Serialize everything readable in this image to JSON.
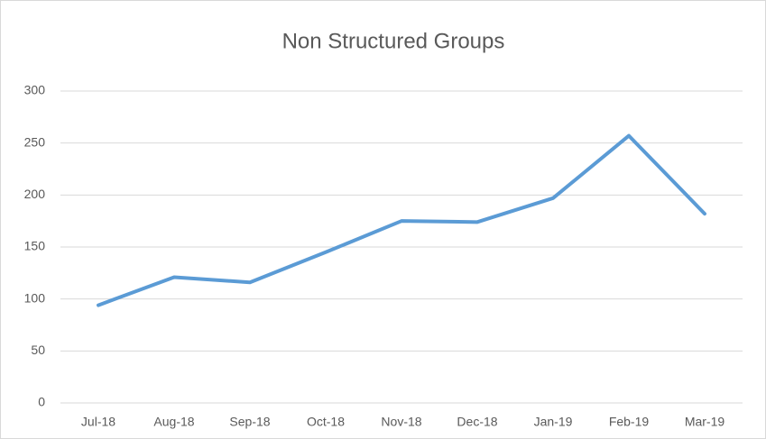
{
  "chart_data": {
    "type": "line",
    "title": "Non Structured Groups",
    "categories": [
      "Jul-18",
      "Aug-18",
      "Sep-18",
      "Oct-18",
      "Nov-18",
      "Dec-18",
      "Jan-19",
      "Feb-19",
      "Mar-19"
    ],
    "series": [
      {
        "color": "#5b9bd5",
        "values": [
          94,
          121,
          116,
          145,
          175,
          174,
          197,
          257,
          182
        ]
      }
    ],
    "ylim": [
      0,
      300
    ],
    "yticks": [
      0,
      50,
      100,
      150,
      200,
      250,
      300
    ],
    "grid": true
  }
}
